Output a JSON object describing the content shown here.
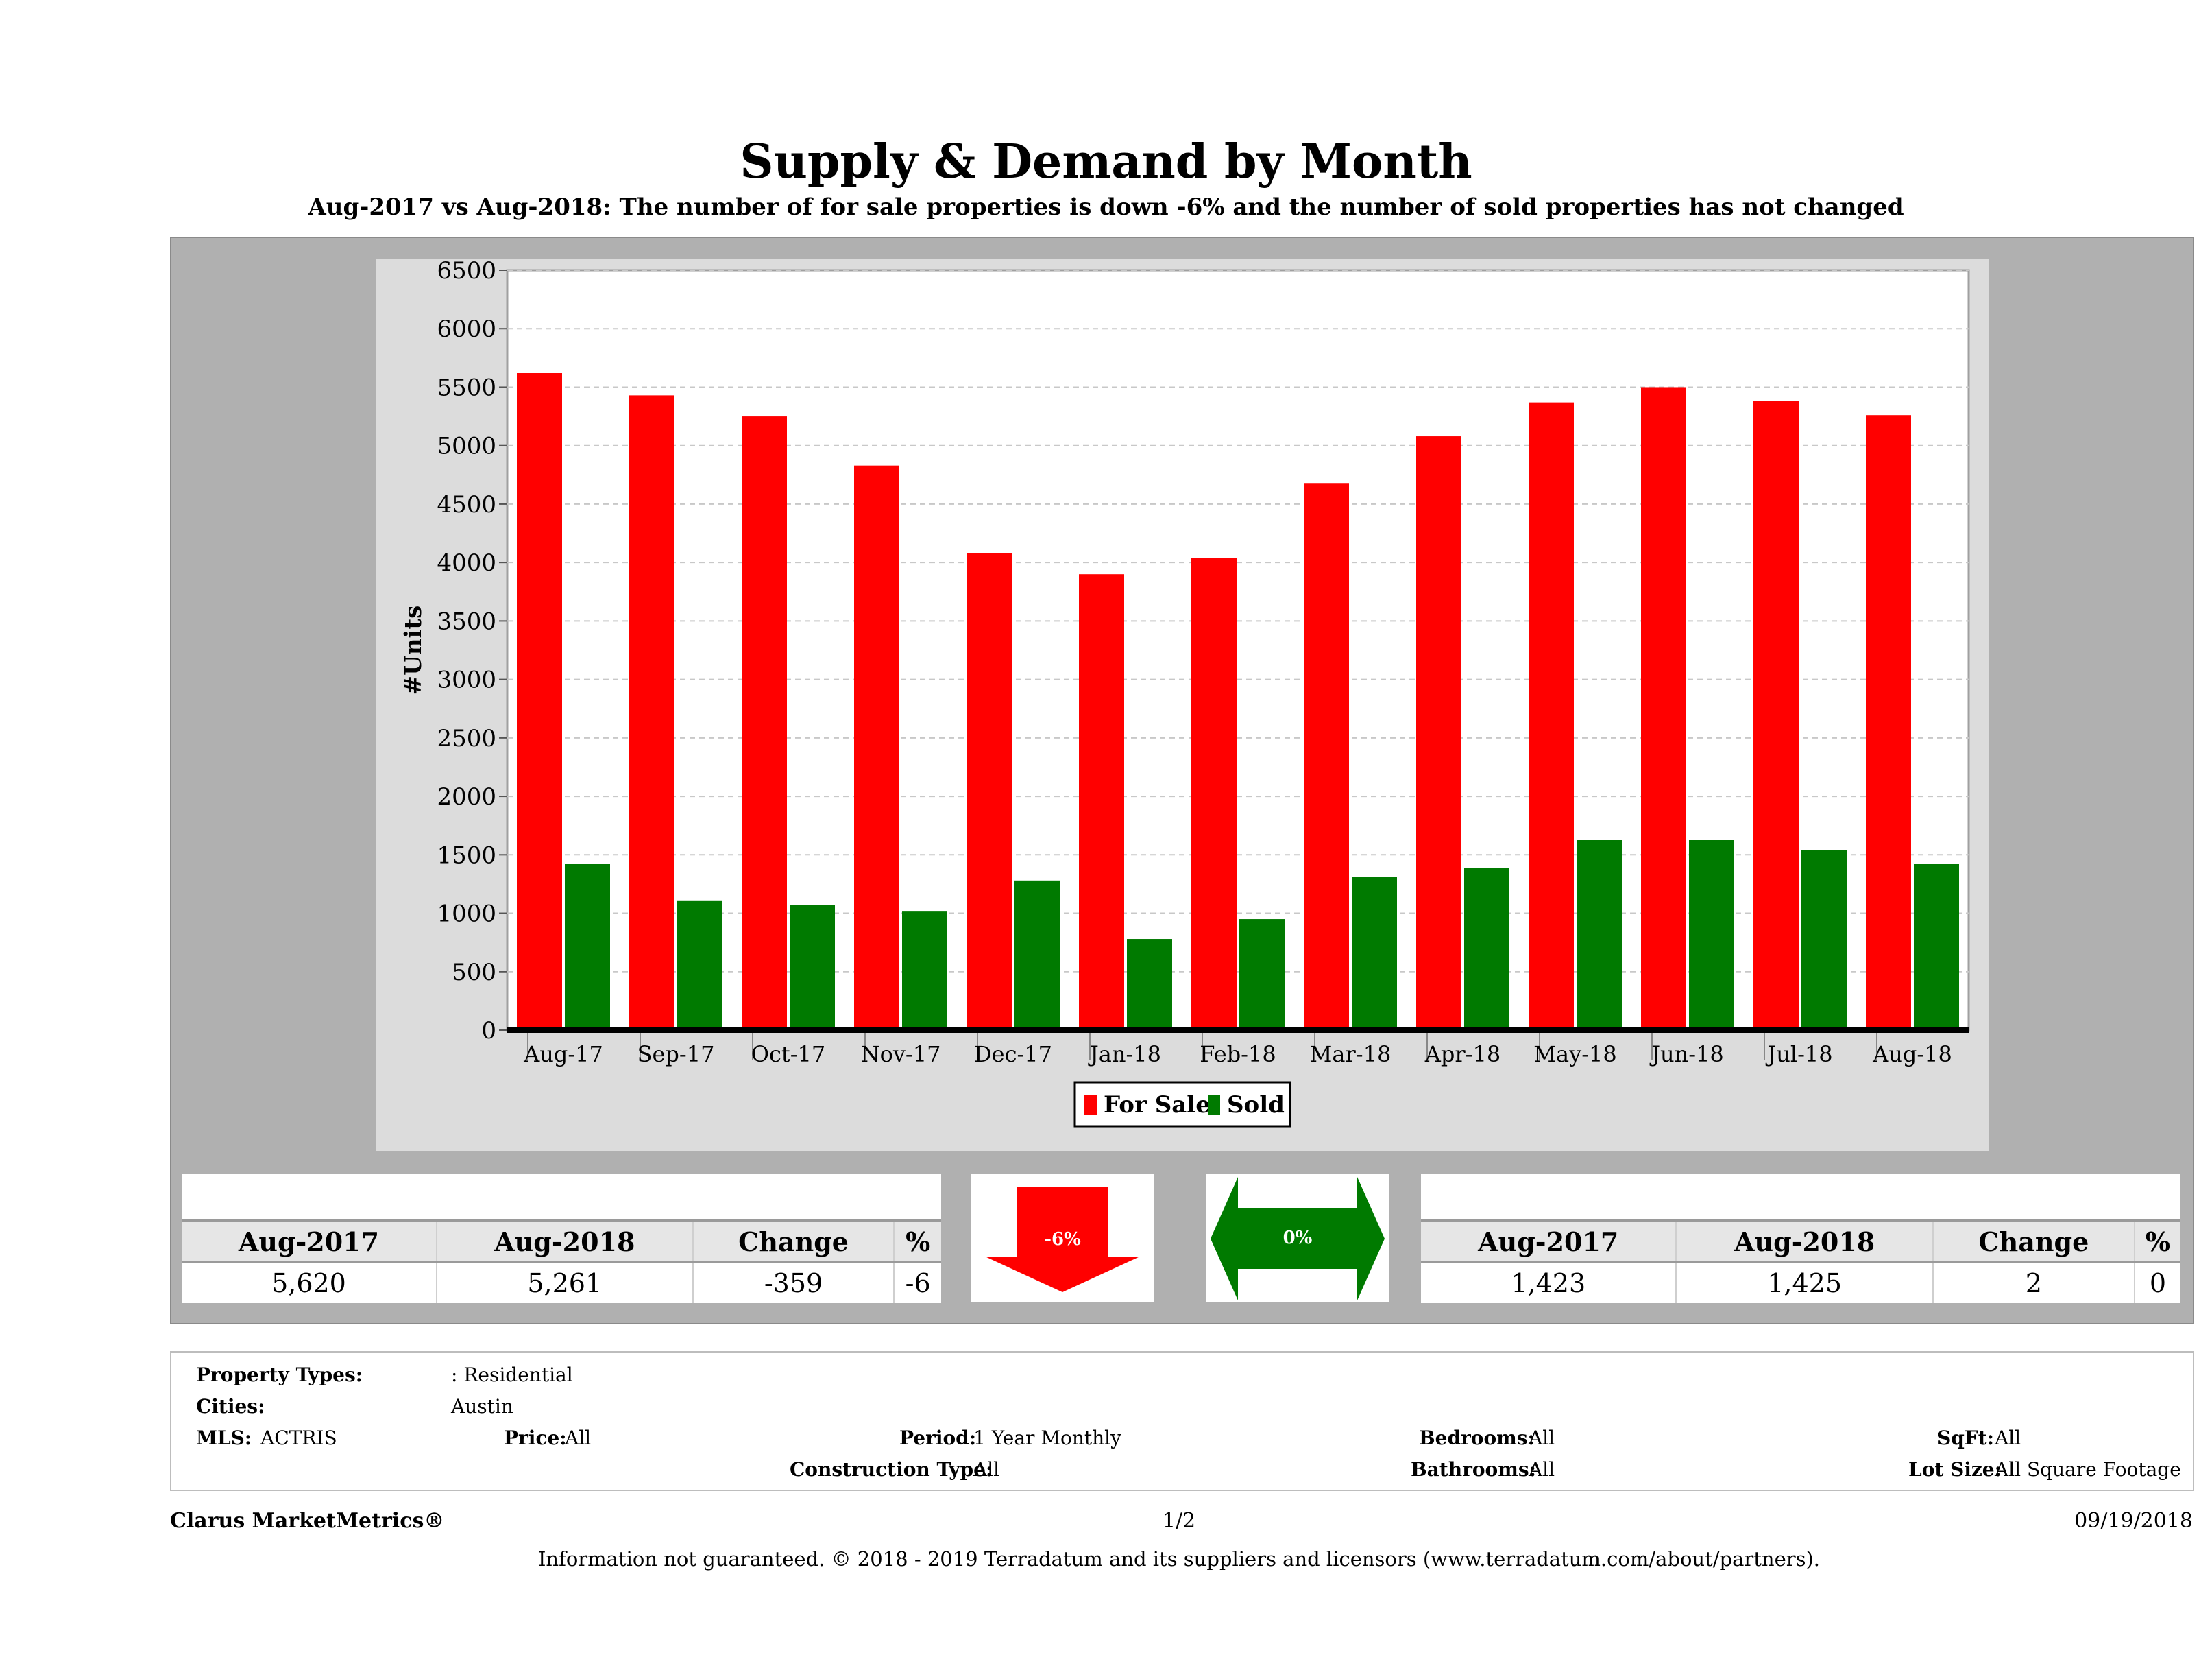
{
  "chart_data": {
    "type": "bar",
    "title": "Supply & Demand by Month",
    "subtitle": "Aug-2017 vs Aug-2018: The number of for sale properties is down -6% and the number of sold properties has not changed",
    "ylabel": "#Units",
    "xlabel": "",
    "ylim": [
      0,
      6500
    ],
    "yticks": [
      "6500",
      "6000",
      "5500",
      "5000",
      "4500",
      "4000",
      "3500",
      "3000",
      "2500",
      "2000",
      "1500",
      "1000",
      "500",
      "0"
    ],
    "grid": true,
    "legend_position": "bottom-center",
    "categories": [
      "Aug-17",
      "Sep-17",
      "Oct-17",
      "Nov-17",
      "Dec-17",
      "Jan-18",
      "Feb-18",
      "Mar-18",
      "Apr-18",
      "May-18",
      "Jun-18",
      "Jul-18",
      "Aug-18"
    ],
    "series": [
      {
        "name": "For Sale",
        "color": "#ff0000",
        "values": [
          5620,
          5430,
          5250,
          4830,
          4080,
          3900,
          4040,
          4680,
          5080,
          5370,
          5500,
          5380,
          5261
        ]
      },
      {
        "name": "Sold",
        "color": "#007a00",
        "values": [
          1423,
          1110,
          1070,
          1020,
          1280,
          780,
          950,
          1310,
          1390,
          1630,
          1630,
          1540,
          1425
        ]
      }
    ]
  },
  "for_sale_table": {
    "headers": [
      "Aug-2017",
      "Aug-2018",
      "Change",
      "%"
    ],
    "values": [
      "5,620",
      "5,261",
      "-359",
      "-6"
    ]
  },
  "sold_table": {
    "headers": [
      "Aug-2017",
      "Aug-2018",
      "Change",
      "%"
    ],
    "values": [
      "1,423",
      "1,425",
      "2",
      "0"
    ]
  },
  "indicators": {
    "for_sale": {
      "label": "-6%",
      "direction": "down",
      "color": "#ff0000"
    },
    "sold": {
      "label": "0%",
      "direction": "flat",
      "color": "#007a00"
    }
  },
  "filters": {
    "property_types_label": "Property Types:",
    "property_types_value": ": Residential",
    "cities_label": "Cities:",
    "cities_value": "Austin",
    "mls_label": "MLS:",
    "mls_value": "ACTRIS",
    "price_label": "Price:",
    "price_value": "All",
    "period_label": "Period:",
    "period_value": "1 Year Monthly",
    "construction_label": "Construction Type:",
    "construction_value": "All",
    "bedrooms_label": "Bedrooms:",
    "bedrooms_value": "All",
    "bathrooms_label": "Bathrooms:",
    "bathrooms_value": "All",
    "sqft_label": "SqFt:",
    "sqft_value": "All",
    "lot_label": "Lot Size:",
    "lot_value": "All Square Footage"
  },
  "footer": {
    "brand": "Clarus MarketMetrics®",
    "page": "1/2",
    "date": "09/19/2018",
    "disclaimer": "Information not guaranteed. © 2018 - 2019 Terradatum and its suppliers and licensors (www.terradatum.com/about/partners)."
  }
}
